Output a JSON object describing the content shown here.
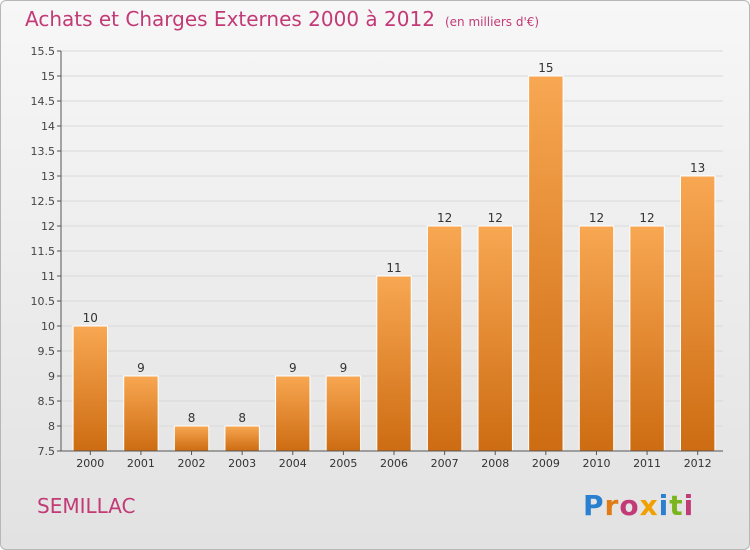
{
  "header": {
    "title": "Achats et Charges Externes 2000 à 2012",
    "unit": "(en milliers d'€)"
  },
  "footer": {
    "place": "SEMILLAC",
    "logo": "Proxiti",
    "logo_letter_colors": [
      "#2a7fd0",
      "#e07b16",
      "#c23a76",
      "#f0a000",
      "#2a7fd0",
      "#7ab51d",
      "#c23a76"
    ]
  },
  "colors": {
    "title": "#c23a76",
    "bar_light": "#f8a752",
    "bar_dark": "#cd6c12",
    "grid": "#d9d9d9",
    "axis": "#555555"
  },
  "chart_data": {
    "type": "bar",
    "categories": [
      "2000",
      "2001",
      "2002",
      "2003",
      "2004",
      "2005",
      "2006",
      "2007",
      "2008",
      "2009",
      "2010",
      "2011",
      "2012"
    ],
    "values": [
      10,
      9,
      8,
      8,
      9,
      9,
      11,
      12,
      12,
      15,
      12,
      12,
      13
    ],
    "ylim": [
      7.5,
      15.5
    ],
    "yticks": [
      7.5,
      8,
      8.5,
      9,
      9.5,
      10,
      10.5,
      11,
      11.5,
      12,
      12.5,
      13,
      13.5,
      14,
      14.5,
      15,
      15.5
    ],
    "ytick_labels": [
      "7.5",
      "8",
      "8.5",
      "9",
      "9.5",
      "10",
      "10.5",
      "11",
      "11.5",
      "12",
      "12.5",
      "13",
      "13.5",
      "14",
      "14.5",
      "15",
      "15.5"
    ],
    "grid": true,
    "title": "Achats et Charges Externes 2000 à 2012",
    "xlabel": "",
    "ylabel": ""
  }
}
